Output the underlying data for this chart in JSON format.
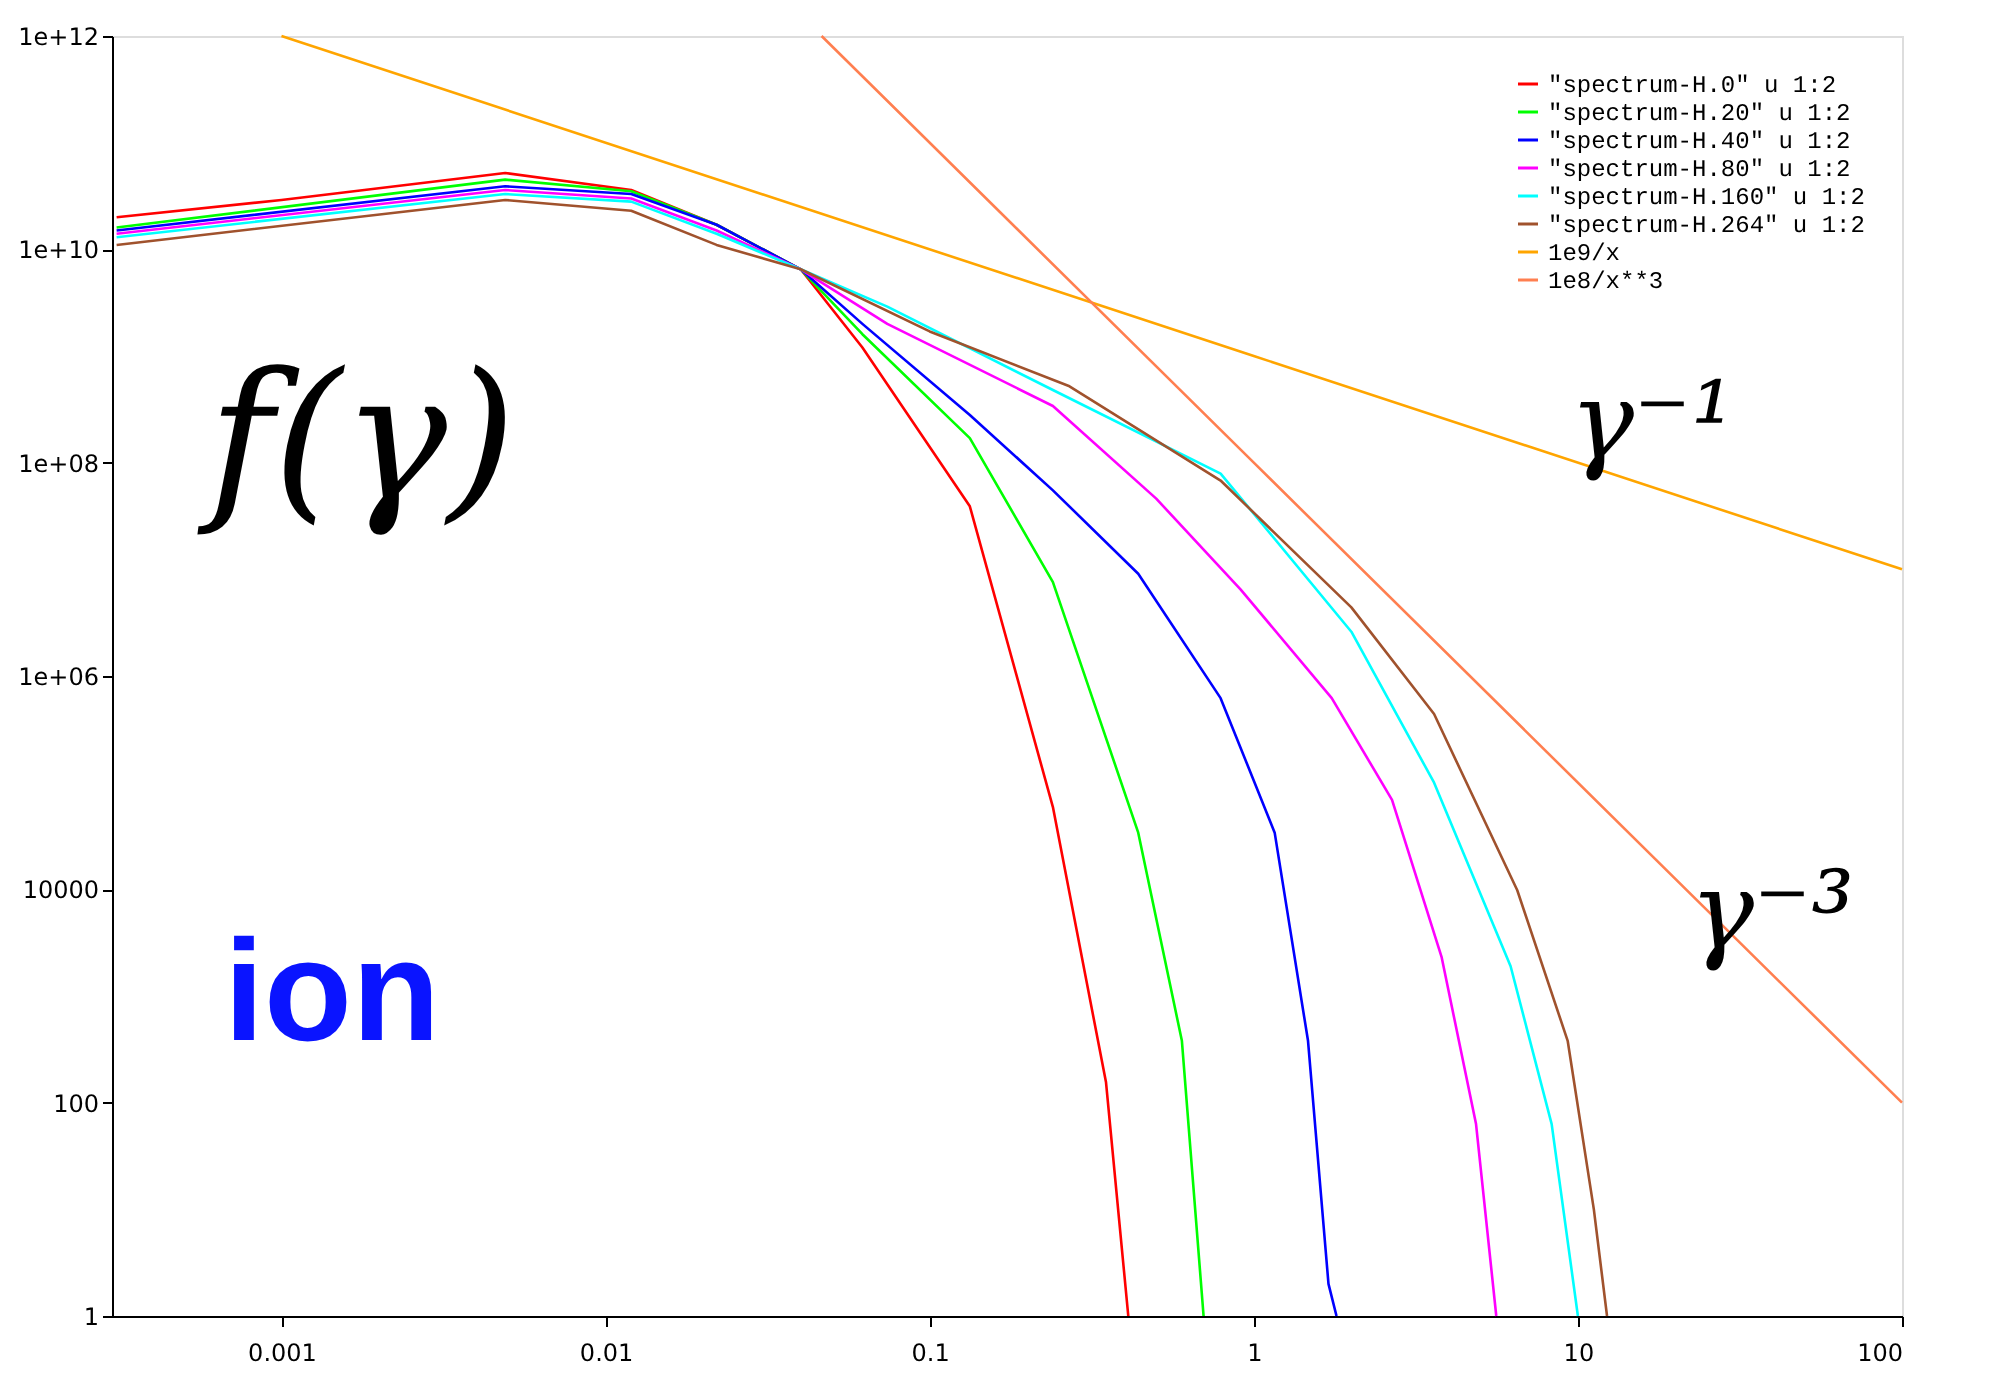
{
  "chart_data": {
    "type": "line",
    "log": "xy",
    "xlim": [
      0.0003,
      100
    ],
    "ylim": [
      1,
      1000000000000.0
    ],
    "xticks": [
      0.001,
      0.01,
      0.1,
      1,
      10,
      100
    ],
    "yticks": [
      1,
      100,
      10000,
      {
        "value": 1000000,
        "label": "1e+06"
      },
      {
        "value": 100000000,
        "label": "1e+08"
      },
      {
        "value": 10000000000,
        "label": "1e+10"
      },
      {
        "value": 1000000000000,
        "label": "1e+12"
      }
    ],
    "grid": false,
    "legend": "top right",
    "marker": "none",
    "line_style": "solid",
    "annotations": [
      "f(γ)",
      "γ⁻¹",
      "γ⁻³",
      "ion"
    ],
    "series": [
      {
        "name": "\"spectrum-H.0\" u 1:2",
        "color": "#ff0000",
        "x": [
          0.00031,
          0.001,
          0.0049,
          0.012,
          0.022,
          0.04,
          0.062,
          0.133,
          0.24,
          0.35,
          0.41
        ],
        "values": [
          20000000000.0,
          29000000000.0,
          52000000000.0,
          36000000000.0,
          17000000000.0,
          6500000000.0,
          1200000000.0,
          39000000.0,
          59000,
          155,
          1
        ]
      },
      {
        "name": "\"spectrum-H.20\" u 1:2",
        "color": "#00ff00",
        "x": [
          0.00031,
          0.0049,
          0.012,
          0.022,
          0.04,
          0.062,
          0.133,
          0.24,
          0.44,
          0.6,
          0.7
        ],
        "values": [
          16000000000.0,
          45000000000.0,
          35000000000.0,
          17000000000.0,
          6500000000.0,
          1600000000.0,
          170000000.0,
          7600000.0,
          34000,
          380,
          1
        ]
      },
      {
        "name": "\"spectrum-H.40\" u 1:2",
        "color": "#0000ff",
        "x": [
          0.00031,
          0.0049,
          0.012,
          0.022,
          0.04,
          0.062,
          0.133,
          0.24,
          0.44,
          0.79,
          1.16,
          1.47,
          1.7,
          1.8
        ],
        "values": [
          15000000000.0,
          39000000000.0,
          33000000000.0,
          17000000000.0,
          6500000000.0,
          2000000000.0,
          280000000.0,
          55000000.0,
          9100000.0,
          620000,
          34000,
          380,
          2,
          1
        ]
      },
      {
        "name": "\"spectrum-H.80\" u 1:2",
        "color": "#ff00ff",
        "x": [
          0.00031,
          0.0049,
          0.012,
          0.022,
          0.04,
          0.074,
          0.24,
          0.5,
          0.91,
          1.74,
          2.67,
          3.8,
          4.85,
          5.6
        ],
        "values": [
          14000000000.0,
          36000000000.0,
          30000000000.0,
          15000000000.0,
          6500000000.0,
          2000000000.0,
          340000000.0,
          46000000.0,
          6500000.0,
          620000,
          69000,
          2300,
          63,
          1
        ]
      },
      {
        "name": "\"spectrum-H.160\" u 1:2",
        "color": "#00ffff",
        "x": [
          0.00031,
          0.0049,
          0.012,
          0.022,
          0.04,
          0.074,
          0.24,
          0.79,
          2,
          3.6,
          6.2,
          8.3,
          10
        ],
        "values": [
          13000000000.0,
          33000000000.0,
          28000000000.0,
          14000000000.0,
          6500000000.0,
          2900000000.0,
          480000000.0,
          79000000.0,
          2600000.0,
          100000,
          1900,
          63,
          1
        ]
      },
      {
        "name": "\"spectrum-H.264\" u 1:2",
        "color": "#a0522d",
        "x": [
          0.00031,
          0.0049,
          0.012,
          0.022,
          0.04,
          0.1,
          0.27,
          0.79,
          2,
          3.6,
          6.5,
          9.3,
          11.2,
          12.3
        ],
        "values": [
          11000000000.0,
          29000000000.0,
          23000000000.0,
          11000000000.0,
          6500000000.0,
          1700000000.0,
          520000000.0,
          68000000.0,
          4400000.0,
          440000,
          9800,
          380,
          10,
          1
        ]
      },
      {
        "name": "1e9/x",
        "color": "#ffa500",
        "x": [
          0.001,
          1,
          100
        ],
        "values": [
          1000000000000.0,
          1000000000.0,
          10000000.0
        ]
      },
      {
        "name": "1e8/x**3",
        "color": "#ff7f50",
        "x": [
          0.0464,
          1,
          100
        ],
        "values": [
          1000000000000.0,
          100000000.0,
          100
        ]
      }
    ]
  }
}
